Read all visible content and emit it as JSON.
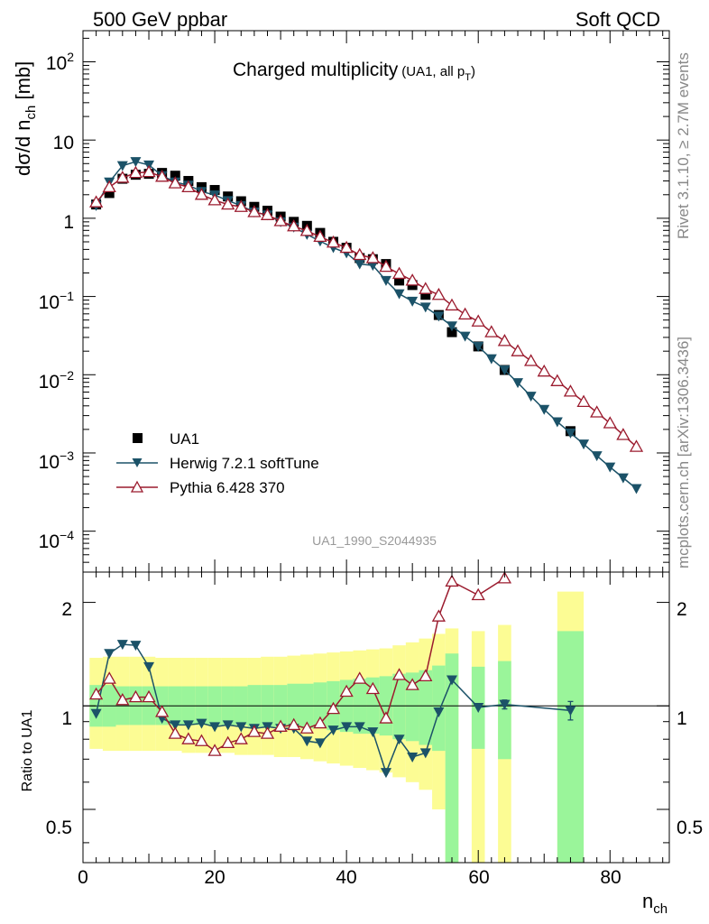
{
  "header": {
    "left": "500 GeV ppbar",
    "right": "Soft QCD"
  },
  "side_text": {
    "rivet": "Rivet 3.1.10, ≥ 2.7M events",
    "source": "mcplots.cern.ch [arXiv:1306.3436]"
  },
  "chart_data": [
    {
      "type": "scatter",
      "panel": "main",
      "title_main": "Charged multiplicity",
      "title_sub": "(UA1, all p",
      "title_sub_index": "T",
      "title_sub_end": ")",
      "ylabel": "dσ/d n",
      "ylabel_sub": "ch",
      "ylabel_unit": " [mb]",
      "yscale": "log",
      "ylim": [
        3e-05,
        250
      ],
      "xlim": [
        0,
        89
      ],
      "ytick_labels": {
        "e-4": "10",
        "e-4_exp": "−4",
        "e-3": "10",
        "e-3_exp": "−3",
        "e-2": "10",
        "e-2_exp": "−2",
        "e-1": "10",
        "e-1_exp": "−1",
        "one": "1",
        "ten": "10",
        "e2": "10",
        "e2_exp": "2"
      },
      "watermark": "UA1_1990_S2044935",
      "legend": [
        "UA1",
        "Herwig 7.2.1 softTune",
        "Pythia 6.428 370"
      ],
      "legend_position": "lower-left",
      "series": [
        {
          "name": "UA1",
          "marker": "square",
          "color": "#000000",
          "x": [
            2,
            4,
            6,
            8,
            10,
            12,
            14,
            16,
            18,
            20,
            22,
            24,
            26,
            28,
            30,
            32,
            34,
            36,
            38,
            40,
            42,
            44,
            46,
            48,
            50,
            52,
            54,
            56,
            60,
            64,
            74
          ],
          "y": [
            1.5,
            2.1,
            3.2,
            3.6,
            3.7,
            3.8,
            3.5,
            3.0,
            2.5,
            2.3,
            1.9,
            1.65,
            1.4,
            1.25,
            1.05,
            0.9,
            0.8,
            0.65,
            0.5,
            0.42,
            0.31,
            0.3,
            0.26,
            0.16,
            0.14,
            0.105,
            0.058,
            0.035,
            0.023,
            0.0115,
            0.0019
          ]
        },
        {
          "name": "Herwig 7.2.1 softTune",
          "marker": "triangle-down",
          "color": "#1b5268",
          "x": [
            2,
            4,
            6,
            8,
            10,
            12,
            14,
            16,
            18,
            20,
            22,
            24,
            26,
            28,
            30,
            32,
            34,
            36,
            38,
            40,
            42,
            44,
            46,
            48,
            50,
            52,
            54,
            56,
            58,
            60,
            62,
            64,
            66,
            68,
            70,
            72,
            74,
            76,
            78,
            80,
            82,
            84
          ],
          "y": [
            1.45,
            2.9,
            4.7,
            5.3,
            4.8,
            3.5,
            2.9,
            2.65,
            2.2,
            1.98,
            1.68,
            1.45,
            1.2,
            1.1,
            0.9,
            0.77,
            0.62,
            0.51,
            0.42,
            0.36,
            0.26,
            0.25,
            0.16,
            0.108,
            0.087,
            0.073,
            0.056,
            0.042,
            0.031,
            0.023,
            0.016,
            0.0115,
            0.0079,
            0.0053,
            0.0036,
            0.0025,
            0.0018,
            0.0013,
            0.00092,
            0.00066,
            0.00048,
            0.00035
          ]
        },
        {
          "name": "Pythia 6.428 370",
          "marker": "triangle-up-open",
          "color": "#9b1b2e",
          "x": [
            2,
            4,
            6,
            8,
            10,
            12,
            14,
            16,
            18,
            20,
            22,
            24,
            26,
            28,
            30,
            32,
            34,
            36,
            38,
            40,
            42,
            44,
            46,
            48,
            50,
            52,
            54,
            56,
            58,
            60,
            62,
            64,
            66,
            68,
            70,
            72,
            74,
            76,
            78,
            80,
            82,
            84
          ],
          "y": [
            1.6,
            2.5,
            3.3,
            3.8,
            3.9,
            3.4,
            2.8,
            2.5,
            2.0,
            1.7,
            1.5,
            1.4,
            1.2,
            1.1,
            0.92,
            0.79,
            0.69,
            0.58,
            0.49,
            0.42,
            0.34,
            0.31,
            0.24,
            0.195,
            0.16,
            0.125,
            0.105,
            0.077,
            0.059,
            0.048,
            0.035,
            0.027,
            0.02,
            0.015,
            0.011,
            0.0083,
            0.0061,
            0.0045,
            0.0033,
            0.0024,
            0.0017,
            0.0012
          ]
        }
      ]
    },
    {
      "type": "line",
      "panel": "ratio",
      "ylabel": "Ratio to UA1",
      "xlabel": "n",
      "xlabel_sub": "ch",
      "yscale": "log",
      "ylim": [
        0.35,
        2.45
      ],
      "xlim": [
        0,
        89
      ],
      "xtick_labels": [
        "0",
        "20",
        "40",
        "60",
        "80"
      ],
      "ytick_labels": [
        "0.5",
        "1",
        "2"
      ],
      "band_colors": {
        "stat": "#9af59a",
        "syst": "#fcfc94"
      },
      "bands": [
        {
          "x": [
            1,
            3
          ],
          "stat": [
            0.87,
            1.15
          ],
          "syst": [
            0.75,
            1.38
          ]
        },
        {
          "x": [
            3,
            5
          ],
          "stat": [
            0.87,
            1.15
          ],
          "syst": [
            0.74,
            1.39
          ]
        },
        {
          "x": [
            5,
            7
          ],
          "stat": [
            0.88,
            1.14
          ],
          "syst": [
            0.74,
            1.39
          ]
        },
        {
          "x": [
            7,
            9
          ],
          "stat": [
            0.88,
            1.14
          ],
          "syst": [
            0.74,
            1.39
          ]
        },
        {
          "x": [
            9,
            11
          ],
          "stat": [
            0.88,
            1.14
          ],
          "syst": [
            0.74,
            1.39
          ]
        },
        {
          "x": [
            11,
            13
          ],
          "stat": [
            0.88,
            1.14
          ],
          "syst": [
            0.74,
            1.38
          ]
        },
        {
          "x": [
            13,
            15
          ],
          "stat": [
            0.88,
            1.14
          ],
          "syst": [
            0.74,
            1.38
          ]
        },
        {
          "x": [
            15,
            17
          ],
          "stat": [
            0.88,
            1.14
          ],
          "syst": [
            0.73,
            1.38
          ]
        },
        {
          "x": [
            17,
            19
          ],
          "stat": [
            0.88,
            1.14
          ],
          "syst": [
            0.73,
            1.38
          ]
        },
        {
          "x": [
            19,
            21
          ],
          "stat": [
            0.88,
            1.14
          ],
          "syst": [
            0.73,
            1.38
          ]
        },
        {
          "x": [
            21,
            23
          ],
          "stat": [
            0.88,
            1.14
          ],
          "syst": [
            0.73,
            1.38
          ]
        },
        {
          "x": [
            23,
            25
          ],
          "stat": [
            0.88,
            1.14
          ],
          "syst": [
            0.72,
            1.38
          ]
        },
        {
          "x": [
            25,
            27
          ],
          "stat": [
            0.87,
            1.15
          ],
          "syst": [
            0.72,
            1.38
          ]
        },
        {
          "x": [
            27,
            29
          ],
          "stat": [
            0.87,
            1.15
          ],
          "syst": [
            0.72,
            1.39
          ]
        },
        {
          "x": [
            29,
            31
          ],
          "stat": [
            0.87,
            1.15
          ],
          "syst": [
            0.71,
            1.39
          ]
        },
        {
          "x": [
            31,
            33
          ],
          "stat": [
            0.87,
            1.16
          ],
          "syst": [
            0.71,
            1.4
          ]
        },
        {
          "x": [
            33,
            35
          ],
          "stat": [
            0.86,
            1.16
          ],
          "syst": [
            0.7,
            1.41
          ]
        },
        {
          "x": [
            35,
            37
          ],
          "stat": [
            0.86,
            1.17
          ],
          "syst": [
            0.69,
            1.42
          ]
        },
        {
          "x": [
            37,
            39
          ],
          "stat": [
            0.85,
            1.18
          ],
          "syst": [
            0.68,
            1.43
          ]
        },
        {
          "x": [
            39,
            41
          ],
          "stat": [
            0.84,
            1.19
          ],
          "syst": [
            0.67,
            1.44
          ]
        },
        {
          "x": [
            41,
            43
          ],
          "stat": [
            0.83,
            1.2
          ],
          "syst": [
            0.66,
            1.45
          ]
        },
        {
          "x": [
            43,
            45
          ],
          "stat": [
            0.83,
            1.21
          ],
          "syst": [
            0.65,
            1.46
          ]
        },
        {
          "x": [
            45,
            47
          ],
          "stat": [
            0.82,
            1.22
          ],
          "syst": [
            0.64,
            1.47
          ]
        },
        {
          "x": [
            47,
            49
          ],
          "stat": [
            0.8,
            1.24
          ],
          "syst": [
            0.62,
            1.5
          ]
        },
        {
          "x": [
            49,
            51
          ],
          "stat": [
            0.79,
            1.25
          ],
          "syst": [
            0.6,
            1.53
          ]
        },
        {
          "x": [
            51,
            53
          ],
          "stat": [
            0.77,
            1.27
          ],
          "syst": [
            0.57,
            1.57
          ]
        },
        {
          "x": [
            53,
            55
          ],
          "stat": [
            0.74,
            1.31
          ],
          "syst": [
            0.5,
            1.62
          ]
        },
        {
          "x": [
            55,
            57
          ],
          "stat": [
            0.35,
            1.42
          ],
          "syst": [
            0.35,
            1.68
          ]
        },
        {
          "x": [
            59,
            61
          ],
          "stat": [
            0.75,
            1.3
          ],
          "syst": [
            0.35,
            1.65
          ]
        },
        {
          "x": [
            63,
            65
          ],
          "stat": [
            0.7,
            1.35
          ],
          "syst": [
            0.35,
            1.72
          ]
        },
        {
          "x": [
            72,
            76
          ],
          "stat": [
            0.35,
            1.65
          ],
          "syst": [
            0.35,
            2.15
          ]
        }
      ],
      "series": [
        {
          "name": "Herwig 7.2.1 softTune",
          "color": "#1b5268",
          "marker": "triangle-down",
          "x": [
            2,
            4,
            6,
            8,
            10,
            12,
            14,
            16,
            18,
            20,
            22,
            24,
            26,
            28,
            30,
            32,
            34,
            36,
            38,
            40,
            42,
            44,
            46,
            48,
            50,
            52,
            54,
            56,
            60,
            64,
            74
          ],
          "y": [
            0.95,
            1.42,
            1.51,
            1.5,
            1.3,
            0.92,
            0.88,
            0.88,
            0.89,
            0.87,
            0.88,
            0.87,
            0.86,
            0.87,
            0.86,
            0.86,
            0.79,
            0.78,
            0.85,
            0.87,
            0.87,
            0.84,
            0.64,
            0.8,
            0.71,
            0.73,
            0.96,
            1.19,
            0.99,
            1.01,
            0.97
          ],
          "yerr": [
            0,
            0,
            0,
            0,
            0,
            0,
            0,
            0,
            0,
            0,
            0,
            0,
            0,
            0,
            0,
            0,
            0,
            0,
            0,
            0,
            0,
            0,
            0,
            0,
            0,
            0,
            0,
            0,
            0,
            0.03,
            0.06
          ]
        },
        {
          "name": "Pythia 6.428 370",
          "color": "#9b1b2e",
          "marker": "triangle-up-open",
          "x": [
            2,
            4,
            6,
            8,
            10,
            12,
            14,
            16,
            18,
            20,
            22,
            24,
            26,
            28,
            30,
            32,
            34,
            36,
            38,
            40,
            42,
            44,
            46,
            48,
            50,
            52,
            54,
            56,
            60,
            64
          ],
          "y": [
            1.08,
            1.2,
            1.04,
            1.06,
            1.06,
            0.96,
            0.83,
            0.8,
            0.79,
            0.74,
            0.78,
            0.8,
            0.84,
            0.83,
            0.87,
            0.88,
            0.86,
            0.89,
            0.98,
            1.1,
            1.2,
            1.12,
            0.92,
            1.23,
            1.15,
            1.22,
            1.82,
            2.3,
            2.1,
            2.35
          ]
        }
      ]
    }
  ]
}
